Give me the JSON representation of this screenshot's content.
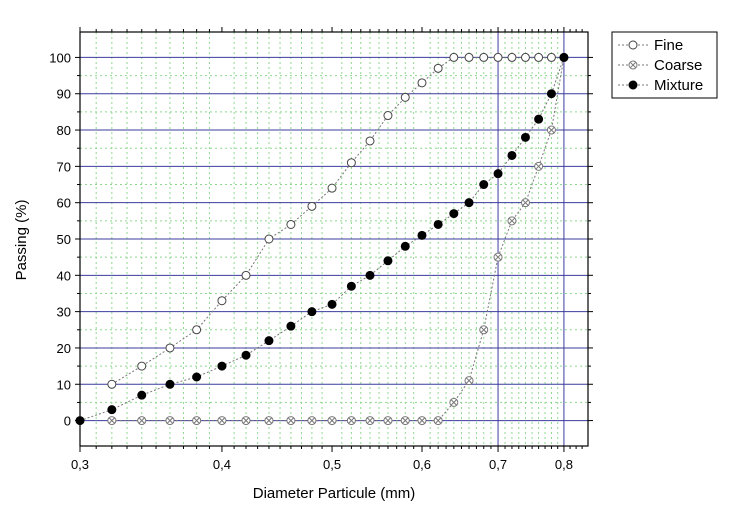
{
  "chart_data": {
    "type": "scatter",
    "xscale": "log",
    "xlabel": "Diameter Particule (mm)",
    "ylabel": "Passing (%)",
    "xlim": [
      0.3,
      0.84
    ],
    "ylim": [
      -7,
      107
    ],
    "x_ticks": [
      0.3,
      0.4,
      0.5,
      0.6,
      0.7,
      0.8
    ],
    "x_tick_labels": [
      "0,3",
      "0,4",
      "0,5",
      "0,6",
      "0,7",
      "0,8"
    ],
    "y_ticks": [
      0,
      10,
      20,
      30,
      40,
      50,
      60,
      70,
      80,
      90,
      100
    ],
    "y_tick_labels": [
      "0",
      "10",
      "20",
      "30",
      "40",
      "50",
      "60",
      "70",
      "80",
      "90",
      "100"
    ],
    "major_grid_x": [
      0.3,
      0.7,
      0.8
    ],
    "legend_position": "top-right",
    "colors": {
      "major_grid": "#3b3b9e",
      "minor_grid": "#8fd88f",
      "marker": "#000000"
    },
    "series": [
      {
        "name": "Fine",
        "marker": "open-circle",
        "points": [
          [
            0.32,
            10
          ],
          [
            0.34,
            15
          ],
          [
            0.36,
            20
          ],
          [
            0.38,
            25
          ],
          [
            0.4,
            33
          ],
          [
            0.42,
            40
          ],
          [
            0.44,
            50
          ],
          [
            0.46,
            54
          ],
          [
            0.48,
            59
          ],
          [
            0.5,
            64
          ],
          [
            0.52,
            71
          ],
          [
            0.54,
            77
          ],
          [
            0.56,
            84
          ],
          [
            0.58,
            89
          ],
          [
            0.6,
            93
          ],
          [
            0.62,
            97
          ],
          [
            0.64,
            100
          ],
          [
            0.66,
            100
          ],
          [
            0.68,
            100
          ],
          [
            0.7,
            100
          ],
          [
            0.72,
            100
          ],
          [
            0.74,
            100
          ],
          [
            0.76,
            100
          ],
          [
            0.78,
            100
          ],
          [
            0.8,
            100
          ]
        ]
      },
      {
        "name": "Coarse",
        "marker": "crossed-circle",
        "points": [
          [
            0.32,
            0
          ],
          [
            0.34,
            0
          ],
          [
            0.36,
            0
          ],
          [
            0.38,
            0
          ],
          [
            0.4,
            0
          ],
          [
            0.42,
            0
          ],
          [
            0.44,
            0
          ],
          [
            0.46,
            0
          ],
          [
            0.48,
            0
          ],
          [
            0.5,
            0
          ],
          [
            0.52,
            0
          ],
          [
            0.54,
            0
          ],
          [
            0.56,
            0
          ],
          [
            0.58,
            0
          ],
          [
            0.6,
            0
          ],
          [
            0.62,
            0
          ],
          [
            0.64,
            5
          ],
          [
            0.66,
            11
          ],
          [
            0.68,
            25
          ],
          [
            0.7,
            45
          ],
          [
            0.72,
            55
          ],
          [
            0.74,
            60
          ],
          [
            0.76,
            70
          ],
          [
            0.78,
            80
          ],
          [
            0.8,
            100
          ]
        ]
      },
      {
        "name": "Mixture",
        "marker": "filled-circle",
        "points": [
          [
            0.3,
            0
          ],
          [
            0.32,
            3
          ],
          [
            0.34,
            7
          ],
          [
            0.36,
            10
          ],
          [
            0.38,
            12
          ],
          [
            0.4,
            15
          ],
          [
            0.42,
            18
          ],
          [
            0.44,
            22
          ],
          [
            0.46,
            26
          ],
          [
            0.48,
            30
          ],
          [
            0.5,
            32
          ],
          [
            0.52,
            37
          ],
          [
            0.54,
            40
          ],
          [
            0.56,
            44
          ],
          [
            0.58,
            48
          ],
          [
            0.6,
            51
          ],
          [
            0.62,
            54
          ],
          [
            0.64,
            57
          ],
          [
            0.66,
            60
          ],
          [
            0.68,
            65
          ],
          [
            0.7,
            68
          ],
          [
            0.72,
            73
          ],
          [
            0.74,
            78
          ],
          [
            0.76,
            83
          ],
          [
            0.78,
            90
          ],
          [
            0.8,
            100
          ]
        ]
      }
    ]
  }
}
